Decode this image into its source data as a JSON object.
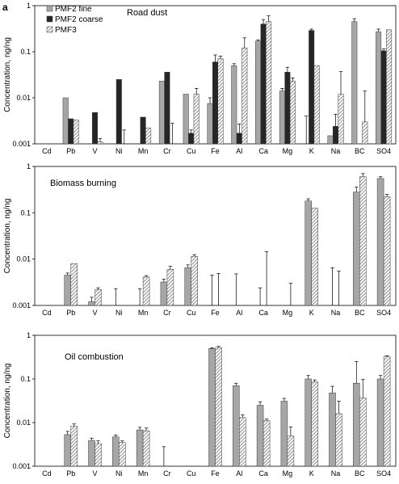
{
  "figure_label": "a",
  "legend": [
    "PMF2 fine",
    "PMF2 coarse",
    "PMF3"
  ],
  "colors": {
    "fine": "#a6a6a6",
    "coarse": "#262626",
    "pmf3": "#d0d0d0"
  },
  "chart_data": [
    {
      "type": "bar",
      "title": "Road dust",
      "ylabel": "Concentration, ng/ng",
      "yscale": "log",
      "ylim": [
        0.001,
        1
      ],
      "yticks": [
        "0.001",
        "0.01",
        "0.1",
        "1"
      ],
      "categories": [
        "Cd",
        "Pb",
        "V",
        "Ni",
        "Mn",
        "Cr",
        "Cu",
        "Fe",
        "Al",
        "Ca",
        "Mg",
        "K",
        "Na",
        "BC",
        "SO4"
      ],
      "series": [
        {
          "name": "PMF2 fine",
          "values": [
            0,
            0.01,
            0.001,
            0,
            0,
            0.023,
            0.012,
            0.0075,
            0.05,
            0.17,
            0.014,
            0,
            0.0015,
            0.45,
            0.27
          ],
          "err": [
            0,
            0,
            0,
            0,
            0,
            0,
            0,
            0.0025,
            0.005,
            0.01,
            0.002,
            0.003,
            0,
            0.07,
            0.04
          ]
        },
        {
          "name": "PMF2 coarse",
          "values": [
            0,
            0.0035,
            0.0048,
            0.025,
            0.0038,
            0.036,
            0.0017,
            0.06,
            0.0017,
            0.4,
            0.036,
            0.29,
            0.0024,
            0,
            0.105
          ],
          "err": [
            0,
            0,
            0,
            0,
            0,
            0,
            0.0003,
            0.025,
            0.001,
            0.1,
            0.01,
            0.02,
            0.002,
            0,
            0.01
          ]
        },
        {
          "name": "PMF3",
          "values": [
            0,
            0.0033,
            0.0011,
            0,
            0.0022,
            0,
            0.012,
            0.07,
            0.12,
            0.45,
            0.023,
            0.05,
            0.012,
            0.003,
            0.3
          ],
          "err": [
            0,
            0,
            0.0002,
            0.001,
            0,
            0.0018,
            0.004,
            0.01,
            0.08,
            0.15,
            0.004,
            0,
            0.025,
            0.011,
            0
          ]
        }
      ]
    },
    {
      "type": "bar",
      "title": "Biomass burning",
      "ylabel": "Concentration, ng/ng",
      "yscale": "log",
      "ylim": [
        0.001,
        1
      ],
      "yticks": [
        "0.001",
        "0.01",
        "0.1",
        "1"
      ],
      "categories": [
        "Cd",
        "Pb",
        "V",
        "Ni",
        "Mn",
        "Cr",
        "Cu",
        "Fe",
        "Al",
        "Ca",
        "Mg",
        "K",
        "Na",
        "BC",
        "SO4"
      ],
      "series": [
        {
          "name": "PMF2 fine",
          "values": [
            0,
            0.0045,
            0.0012,
            0,
            0,
            0.0032,
            0.0065,
            0,
            0,
            0,
            0,
            0.18,
            0,
            0.28,
            0.55
          ],
          "err": [
            0,
            0.0005,
            0.0003,
            0.0013,
            0.0013,
            0.0005,
            0.001,
            0.0035,
            0.0038,
            0.0014,
            0,
            0.02,
            0.0055,
            0.08,
            0.05
          ]
        },
        {
          "name": "PMF3",
          "values": [
            0,
            0.008,
            0.0022,
            0,
            0.0041,
            0.006,
            0.0115,
            0,
            0,
            0,
            0,
            0.125,
            0,
            0.6,
            0.22
          ],
          "err": [
            0,
            0,
            0.0002,
            0,
            0.0003,
            0.001,
            0.001,
            0.0039,
            0,
            0.0135,
            0.002,
            0,
            0.0045,
            0.1,
            0.03
          ]
        }
      ]
    },
    {
      "type": "bar",
      "title": "Oil combustion",
      "ylabel": "Concentration, ng/ng",
      "yscale": "log",
      "ylim": [
        0.001,
        1
      ],
      "yticks": [
        "0.001",
        "0.01",
        "0.1",
        "1"
      ],
      "categories": [
        "Cd",
        "Pb",
        "V",
        "Ni",
        "Mn",
        "Cr",
        "Cu",
        "Fe",
        "Al",
        "Ca",
        "Mg",
        "K",
        "Na",
        "BC",
        "SO4"
      ],
      "series": [
        {
          "name": "PMF2 fine",
          "values": [
            0,
            0.0053,
            0.0039,
            0.0047,
            0.0068,
            0,
            0,
            0.5,
            0.07,
            0.025,
            0.031,
            0.1,
            0.048,
            0.08,
            0.1
          ],
          "err": [
            0,
            0.001,
            0.0005,
            0.0005,
            0.001,
            0.0018,
            0,
            0.02,
            0.01,
            0.005,
            0.005,
            0.02,
            0.02,
            0.17,
            0.02
          ]
        },
        {
          "name": "PMF3",
          "values": [
            0,
            0.0083,
            0.0033,
            0.0035,
            0.0065,
            0,
            0,
            0.52,
            0.013,
            0.011,
            0.005,
            0.085,
            0.016,
            0.037,
            0.33
          ],
          "err": [
            0,
            0.001,
            0.0005,
            0.0003,
            0.001,
            0,
            0,
            0.04,
            0.002,
            0.001,
            0.003,
            0.01,
            0.015,
            0.06,
            0.01
          ]
        }
      ]
    }
  ]
}
